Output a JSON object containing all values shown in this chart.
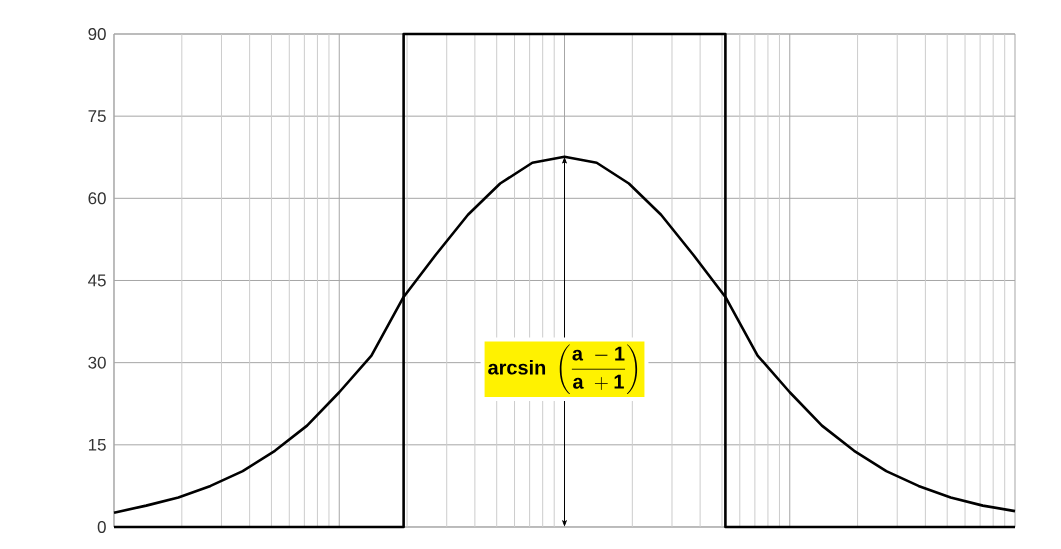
{
  "chart_data": {
    "type": "line",
    "grid": true,
    "tick_labels": "y",
    "categories": [
      null,
      null,
      null,
      null,
      null,
      null,
      null,
      null,
      null,
      null,
      null,
      null,
      null,
      null,
      null,
      null,
      null,
      null,
      null,
      null,
      null,
      null,
      null,
      null,
      null,
      null,
      null,
      null,
      null
    ],
    "ylim": [
      0,
      90
    ],
    "yticks": [
      0,
      15,
      30,
      45,
      60,
      75,
      90
    ],
    "series": [
      {
        "color": "#000000",
        "values": [
          2.6,
          3.9,
          5.4,
          7.5,
          10.2,
          13.9,
          18.5,
          24.6,
          31.3,
          42.0,
          49.7,
          57.0,
          62.7,
          66.5,
          67.6,
          66.5,
          62.7,
          57.0,
          49.7,
          42.0,
          31.3,
          24.6,
          18.5,
          13.9,
          10.2,
          7.5,
          5.4,
          3.9,
          2.9
        ]
      },
      {
        "type": "step",
        "color": "#000000",
        "values": [
          0,
          0,
          0,
          0,
          0,
          0,
          0,
          0,
          0,
          90,
          90,
          90,
          90,
          90,
          90,
          90,
          90,
          90,
          90,
          0,
          0,
          0,
          0,
          0,
          0,
          0,
          0,
          0,
          0
        ]
      }
    ],
    "annotations": [
      "\\mathbf{arcsin}\\;\\left(\\frac{\\mathbf{a}\\;-\\mathbf{1}}{\\mathbf{a}\\;+\\mathbf{1}}\\right)"
    ]
  }
}
